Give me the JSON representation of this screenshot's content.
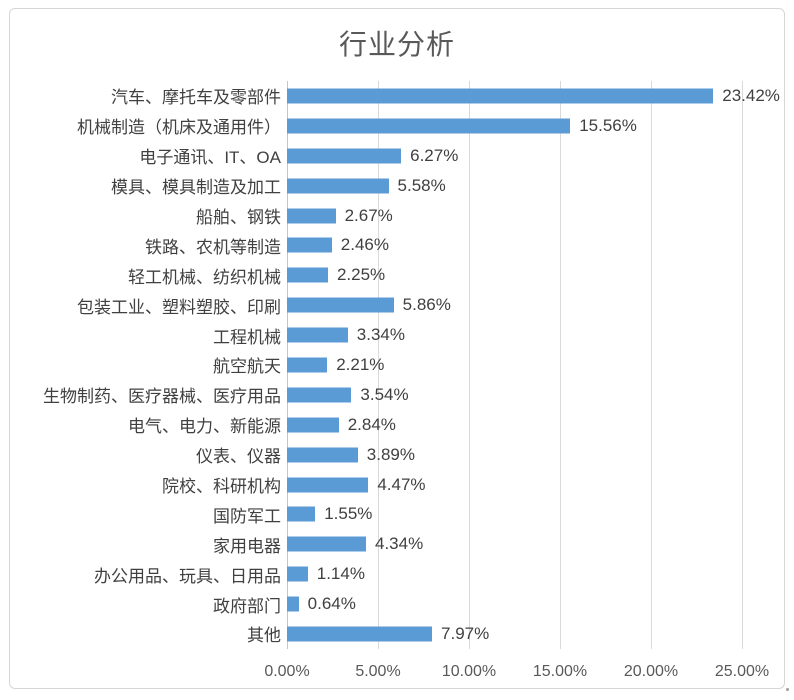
{
  "chart_data": {
    "type": "bar",
    "orientation": "horizontal",
    "title": "行业分析",
    "categories": [
      "汽车、摩托车及零部件",
      "机械制造（机床及通用件）",
      "电子通讯、IT、OA",
      "模具、模具制造及加工",
      "船舶、钢铁",
      "铁路、农机等制造",
      "轻工机械、纺织机械",
      "包装工业、塑料塑胶、印刷",
      "工程机械",
      "航空航天",
      "生物制药、医疗器械、医疗用品",
      "电气、电力、新能源",
      "仪表、仪器",
      "院校、科研机构",
      "国防军工",
      "家用电器",
      "办公用品、玩具、日用品",
      "政府部门",
      "其他"
    ],
    "values": [
      23.42,
      15.56,
      6.27,
      5.58,
      2.67,
      2.46,
      2.25,
      5.86,
      3.34,
      2.21,
      3.54,
      2.84,
      3.89,
      4.47,
      1.55,
      4.34,
      1.14,
      0.64,
      7.97
    ],
    "value_labels": [
      "23.42%",
      "15.56%",
      "6.27%",
      "5.58%",
      "2.67%",
      "2.46%",
      "2.25%",
      "5.86%",
      "3.34%",
      "2.21%",
      "3.54%",
      "2.84%",
      "3.89%",
      "4.47%",
      "1.55%",
      "4.34%",
      "1.14%",
      "0.64%",
      "7.97%"
    ],
    "xlabel": "",
    "ylabel": "",
    "xlim": [
      0,
      25
    ],
    "x_tick_labels": [
      "0.00%",
      "5.00%",
      "10.00%",
      "15.00%",
      "20.00%",
      "25.00%"
    ],
    "grid": "vertical",
    "legend": "none"
  },
  "colors": {
    "bar": "#5b9bd5",
    "gridline": "#d9d9d9",
    "axis_line": "#c6c6c6",
    "title_text": "#595959",
    "label_text": "#404040",
    "tick_text": "#595959",
    "frame_border": "#d6d6d6"
  }
}
